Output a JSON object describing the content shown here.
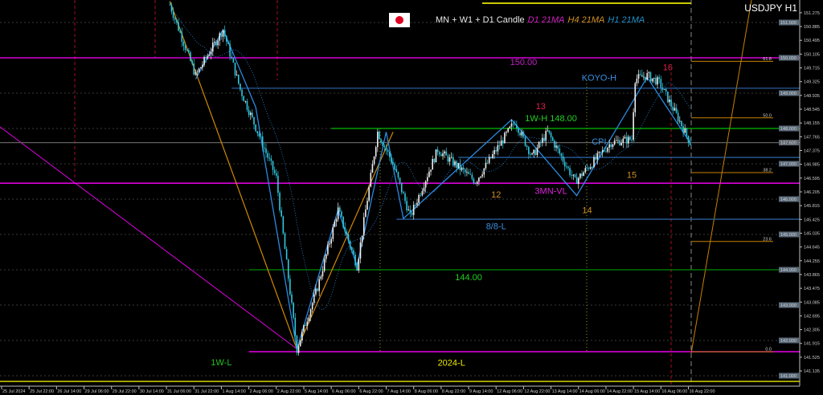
{
  "header": {
    "symbol_title": "USDJPY H1",
    "legend_text": "MN + W1 + D1 Candle",
    "ma_labels": [
      {
        "text": "D1 21MA",
        "color": "#d020c0"
      },
      {
        "text": "H4 21MA",
        "color": "#d09020"
      },
      {
        "text": "H1 21MA",
        "color": "#1e90c8"
      }
    ],
    "flags": [
      "us-flag-icon",
      "japan-flag-icon"
    ]
  },
  "chart_data": {
    "type": "candlestick",
    "symbol": "USDJPY",
    "timeframe": "H1",
    "ylim": [
      140.8,
      151.5
    ],
    "grid": true,
    "colors": {
      "bull": "#f0f0f0",
      "bear": "#30c8e0",
      "background": "#000000"
    },
    "price_path": [
      {
        "t": "2024-07-31 08:00",
        "p": 151.5
      },
      {
        "t": "2024-07-31 23:00",
        "p": 149.5
      },
      {
        "t": "2024-08-01 15:00",
        "p": 150.8
      },
      {
        "t": "2024-08-02 01:00",
        "p": 149.1
      },
      {
        "t": "2024-08-02 22:00",
        "p": 146.6
      },
      {
        "t": "2024-08-05 10:00",
        "p": 141.75
      },
      {
        "t": "2024-08-05 22:00",
        "p": 143.5
      },
      {
        "t": "2024-08-06 10:00",
        "p": 145.7
      },
      {
        "t": "2024-08-06 21:00",
        "p": 144.1
      },
      {
        "t": "2024-08-07 09:00",
        "p": 147.9
      },
      {
        "t": "2024-08-07 18:00",
        "p": 147.0
      },
      {
        "t": "2024-08-08 04:00",
        "p": 145.5
      },
      {
        "t": "2024-08-08 20:00",
        "p": 147.4
      },
      {
        "t": "2024-08-09 18:00",
        "p": 146.5
      },
      {
        "t": "2024-08-12 17:00",
        "p": 148.2
      },
      {
        "t": "2024-08-13 03:00",
        "p": 147.2
      },
      {
        "t": "2024-08-13 12:00",
        "p": 147.9
      },
      {
        "t": "2024-08-14 04:00",
        "p": 146.5
      },
      {
        "t": "2024-08-15 01:00",
        "p": 147.6
      },
      {
        "t": "2024-08-15 13:00",
        "p": 147.7
      },
      {
        "t": "2024-08-15 15:00",
        "p": 149.4
      },
      {
        "t": "2024-08-15 22:00",
        "p": 149.5
      },
      {
        "t": "2024-08-16 05:00",
        "p": 149.3
      },
      {
        "t": "2024-08-16 17:00",
        "p": 148.2
      },
      {
        "t": "2024-08-16 23:00",
        "p": 147.6
      }
    ],
    "levels": [
      {
        "price": 150.0,
        "color": "#ff00ff",
        "from": "start",
        "label": "150.00",
        "label_color": "#c020c0",
        "label_t": "2024-08-12 22:00",
        "label_p": 149.8
      },
      {
        "price": 146.45,
        "color": "#ff00ff",
        "from": "start",
        "label": "3MN-VL",
        "label_color": "#e020e0",
        "label_t": "2024-08-13 14:00",
        "label_p": 146.15
      },
      {
        "price": 141.68,
        "color": "#ff00ff",
        "from": "2024-08-02 06:00",
        "label": "1W-L",
        "label_color": "#20c020",
        "label_t": "2024-08-01 14:00",
        "label_p": 141.3
      },
      {
        "price": 148.0,
        "color": "#00c000",
        "from": "2024-08-06 06:00",
        "label": "1W-H 148.00",
        "label_color": "#20d020",
        "label_t": "2024-08-13 14:00",
        "label_p": 148.2
      },
      {
        "price": 144.0,
        "color": "#008a00",
        "from": "2024-08-02 06:00",
        "label": "144.00",
        "label_color": "#20d020",
        "label_t": "2024-08-09 14:00",
        "label_p": 143.7
      },
      {
        "price": 149.14,
        "color": "#2a5d9a",
        "from": "2024-08-01 20:00",
        "label": "KOYO-H",
        "label_color": "#3a90e0",
        "label_t": "2024-08-14 18:00",
        "label_p": 149.35
      },
      {
        "price": 145.43,
        "color": "#2a5d9a",
        "from": "2024-08-07 20:00",
        "label": "8/8-L",
        "label_color": "#3a90e0",
        "label_t": "2024-08-12 06:00",
        "label_p": 145.15
      },
      {
        "price": 147.18,
        "color": "#2a5d9a",
        "from": "2024-08-09 08:00",
        "label": "CPI",
        "label_color": "#3a90e0",
        "label_t": "2024-08-14 18:00",
        "label_p": 147.55
      },
      {
        "price": 147.6,
        "color": "#606060",
        "from": "start",
        "label": "",
        "label_color": "#fff"
      },
      {
        "price": 140.84,
        "color": "#e8e800",
        "from": "start",
        "label": "2024-L",
        "label_color": "#e8e800",
        "label_t": "2024-08-09 04:00",
        "label_p": 141.28
      }
    ],
    "wave_labels": [
      {
        "text": "12",
        "color": "#d09020",
        "t": "2024-08-12 06:00",
        "p": 146.05
      },
      {
        "text": "13",
        "color": "#e0204a",
        "t": "2024-08-13 08:00",
        "p": 148.55
      },
      {
        "text": "14",
        "color": "#d09020",
        "t": "2024-08-14 11:00",
        "p": 145.6
      },
      {
        "text": "15",
        "color": "#d09020",
        "t": "2024-08-15 13:00",
        "p": 146.6
      },
      {
        "text": "16",
        "color": "#e0204a",
        "t": "2024-08-16 10:00",
        "p": 149.65
      }
    ],
    "fib_levels": [
      {
        "label": "61.8",
        "price": 149.9
      },
      {
        "label": "50.0",
        "price": 148.3
      },
      {
        "label": "38.2",
        "price": 146.75
      },
      {
        "label": "23.6",
        "price": 144.8
      },
      {
        "label": "0.0",
        "price": 141.68
      }
    ],
    "zigzag_blue": [
      {
        "t": "2024-07-31 23:00",
        "p": 149.4
      },
      {
        "t": "2024-08-01 15:00",
        "p": 150.8
      },
      {
        "t": "2024-08-02 10:00",
        "p": 148.6
      },
      {
        "t": "2024-08-05 10:00",
        "p": 141.75
      },
      {
        "t": "2024-08-06 10:00",
        "p": 145.7
      },
      {
        "t": "2024-08-06 21:00",
        "p": 144.1
      },
      {
        "t": "2024-08-07 14:00",
        "p": 147.9
      },
      {
        "t": "2024-08-08 00:00",
        "p": 145.45
      },
      {
        "t": "2024-08-12 15:00",
        "p": 148.25
      },
      {
        "t": "2024-08-14 05:00",
        "p": 146.1
      },
      {
        "t": "2024-08-15 22:00",
        "p": 149.45
      },
      {
        "t": "2024-08-16 23:00",
        "p": 147.6
      }
    ],
    "zigzag_orange": [
      {
        "t": "2024-07-31 08:00",
        "p": 151.6
      },
      {
        "t": "2024-08-05 10:00",
        "p": 141.75
      },
      {
        "t": "2024-08-07 18:00",
        "p": 147.9
      }
    ],
    "x_tick_labels": [
      "25 Jul 2024",
      "25 Jul 22:00",
      "26 Jul 14:00",
      "29 Jul 06:00",
      "29 Jul 22:00",
      "30 Jul 14:00",
      "31 Jul 06:00",
      "31 Jul 22:00",
      "1 Aug 14:00",
      "2 Aug 06:00",
      "2 Aug 22:00",
      "5 Aug 14:00",
      "6 Aug 06:00",
      "6 Aug 22:00",
      "7 Aug 14:00",
      "8 Aug 06:00",
      "8 Aug 22:00",
      "9 Aug 14:00",
      "12 Aug 06:00",
      "12 Aug 22:00",
      "13 Aug 14:00",
      "14 Aug 06:00",
      "14 Aug 22:00",
      "15 Aug 14:00",
      "16 Aug 06:00",
      "16 Aug 22:00"
    ],
    "y_tick_labels": [
      "151.275",
      "150.885",
      "150.495",
      "150.105",
      "149.715",
      "149.325",
      "148.935",
      "148.545",
      "148.155",
      "147.765",
      "147.375",
      "146.985",
      "146.595",
      "146.205",
      "145.815",
      "145.425",
      "145.035",
      "144.645",
      "144.255",
      "143.865",
      "143.475",
      "143.085",
      "142.695",
      "142.305",
      "141.915",
      "141.525",
      "141.135"
    ],
    "y_price_boxes": [
      "151.000",
      "150.000",
      "149.000",
      "148.000",
      "147.600",
      "147.000",
      "146.000",
      "145.000",
      "144.000",
      "143.000",
      "142.000",
      "141.000"
    ]
  }
}
